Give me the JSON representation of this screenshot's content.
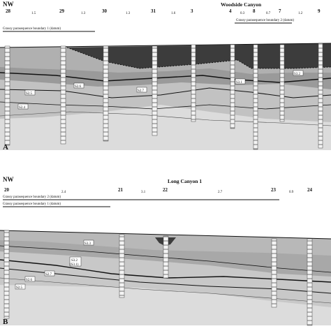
{
  "panel_a": {
    "letter": "A",
    "direction": "NW",
    "location": "Woodside Canyon",
    "datum_1": "Grassy parasequence boundary 1 (datum)",
    "datum_2": "Grassy parasequence boundary 2 (datum)",
    "sections": [
      "28",
      "29",
      "30",
      "31",
      "3",
      "4",
      "8",
      "7",
      "9"
    ],
    "distances": [
      "1.5",
      "1.3",
      "1.3",
      "1.6",
      "0.3",
      "0.7",
      "1.2"
    ],
    "units": [
      "S2.6",
      "S2.7",
      "S2.5",
      "S3.1",
      "S2.4",
      "S3.2"
    ]
  },
  "panel_b": {
    "letter": "B",
    "direction": "NW",
    "location": "Long Canyon 1",
    "datum_2": "Grassy parasequence boundary 2 (datum)",
    "datum_1": "Grassy parasequence boundary 1 (datum)",
    "sections": [
      "20",
      "21",
      "22",
      "23",
      "24"
    ],
    "distances": [
      "2.4",
      "3.1",
      "2.7",
      "0.9"
    ],
    "units": [
      "S3.3",
      "S3.2",
      "(S3.1)",
      "S2.7",
      "S2.6",
      "S2.5"
    ]
  },
  "colors": {
    "dark_unit": "#3c3c3c",
    "mid_unit": "#8e8e8e",
    "light_unit": "#bdbdbd",
    "pale_unit": "#dcdcdc",
    "line": "#111111"
  }
}
